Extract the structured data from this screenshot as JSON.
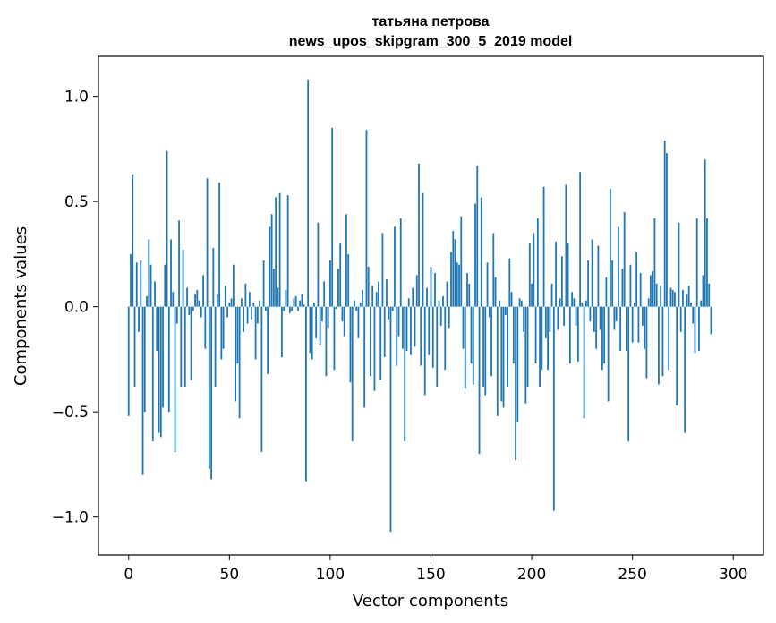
{
  "chart_data": {
    "type": "bar",
    "title_line1": "татьяна петрова",
    "title_line2": "news_upos_skipgram_300_5_2019 model",
    "xlabel": "Vector components",
    "ylabel": "Components values",
    "xlim": [
      -15,
      315
    ],
    "ylim": [
      -1.18,
      1.19
    ],
    "xticks": [
      0,
      50,
      100,
      150,
      200,
      250,
      300
    ],
    "yticks": [
      -1.0,
      -0.5,
      0.0,
      0.5,
      1.0
    ],
    "ytick_labels": [
      "−1.0",
      "−0.5",
      "0.0",
      "0.5",
      "1.0"
    ],
    "bar_color": "#1f77b4",
    "values": [
      -0.52,
      0.25,
      0.63,
      -0.38,
      0.21,
      -0.12,
      0.22,
      -0.8,
      -0.5,
      0.05,
      0.32,
      0.2,
      -0.64,
      0.12,
      -0.21,
      -0.6,
      -0.62,
      -0.48,
      0.2,
      0.74,
      -0.5,
      0.32,
      0.07,
      -0.69,
      -0.08,
      0.41,
      -0.38,
      0.27,
      -0.38,
      0.09,
      -0.04,
      -0.35,
      -0.02,
      0.06,
      0.08,
      0.03,
      -0.05,
      0.15,
      -0.2,
      0.61,
      -0.77,
      -0.82,
      0.28,
      -0.38,
      0.06,
      0.59,
      -0.25,
      -0.2,
      0.1,
      -0.05,
      0.02,
      0.04,
      0.2,
      -0.45,
      -0.27,
      -0.53,
      0.04,
      -0.12,
      0.11,
      -0.08,
      0.07,
      -0.06,
      0.02,
      -0.25,
      -0.08,
      0.03,
      -0.69,
      0.22,
      -0.02,
      -0.32,
      0.38,
      0.44,
      0.18,
      0.52,
      0.09,
      0.54,
      -0.24,
      -0.02,
      0.08,
      0.53,
      -0.03,
      -0.02,
      0.04,
      0.05,
      -0.02,
      0.03,
      0.06,
      0.01,
      -0.83,
      1.08,
      -0.22,
      -0.25,
      0.02,
      -0.15,
      0.4,
      -0.18,
      -0.07,
      0.12,
      -0.33,
      -0.1,
      0.22,
      0.85,
      -0.3,
      -0.01,
      0.18,
      0.3,
      -0.07,
      -0.14,
      0.44,
      0.25,
      -0.36,
      -0.64,
      0.03,
      -0.02,
      -0.15,
      0.02,
      0.08,
      -0.48,
      0.84,
      0.19,
      -0.33,
      0.1,
      -0.4,
      0.07,
      0.12,
      -0.35,
      0.35,
      -0.24,
      0.13,
      -0.06,
      -1.07,
      -0.02,
      0.38,
      -0.28,
      -0.14,
      0.42,
      -0.2,
      -0.64,
      -0.21,
      0.04,
      -0.23,
      0.09,
      -0.19,
      0.15,
      0.68,
      -0.28,
      0.54,
      -0.42,
      0.09,
      -0.23,
      0.19,
      -0.29,
      0.16,
      -0.38,
      0.03,
      -0.09,
      0.05,
      -0.3,
      0.12,
      -0.1,
      0.26,
      0.36,
      0.32,
      0.21,
      0.2,
      0.43,
      -0.2,
      -0.39,
      0.16,
      0.11,
      -0.27,
      -0.37,
      0.49,
      0.67,
      -0.7,
      0.52,
      -0.38,
      -0.42,
      0.21,
      -0.05,
      -0.33,
      0.35,
      0.14,
      -0.52,
      0.03,
      -0.45,
      -0.48,
      -0.04,
      -0.38,
      0.23,
      0.07,
      -0.27,
      -0.73,
      -0.55,
      0.04,
      0.03,
      -0.12,
      -0.46,
      -0.38,
      0.3,
      0.11,
      0.35,
      -0.27,
      0.42,
      -0.38,
      -0.3,
      0.57,
      -0.15,
      -0.3,
      -0.12,
      0.11,
      -0.97,
      0.31,
      -0.11,
      0.04,
      0.24,
      -0.09,
      0.58,
      0.3,
      -0.27,
      0.07,
      0.04,
      -0.09,
      -0.26,
      0.64,
      0.02,
      -0.53,
      0.03,
      0.22,
      -0.07,
      0.32,
      -0.12,
      -0.2,
      0.29,
      -0.11,
      -0.3,
      -0.27,
      0.14,
      -0.45,
      0.56,
      0.22,
      -0.11,
      -0.07,
      0.38,
      -0.21,
      0.18,
      0.45,
      -0.21,
      -0.64,
      0.2,
      -0.17,
      0.02,
      0.26,
      -0.17,
      0.16,
      -0.09,
      -0.2,
      -0.34,
      0.04,
      0.15,
      0.17,
      0.42,
      0.11,
      -0.37,
      0.1,
      -0.33,
      0.79,
      0.73,
      -0.3,
      0.09,
      0.08,
      0.07,
      -0.47,
      0.4,
      -0.12,
      0.08,
      -0.6,
      0.06,
      0.1,
      0.02,
      -0.08,
      -0.22,
      0.42,
      -0.21,
      0.03,
      0.15,
      0.7,
      0.42,
      0.11,
      -0.13
    ]
  }
}
